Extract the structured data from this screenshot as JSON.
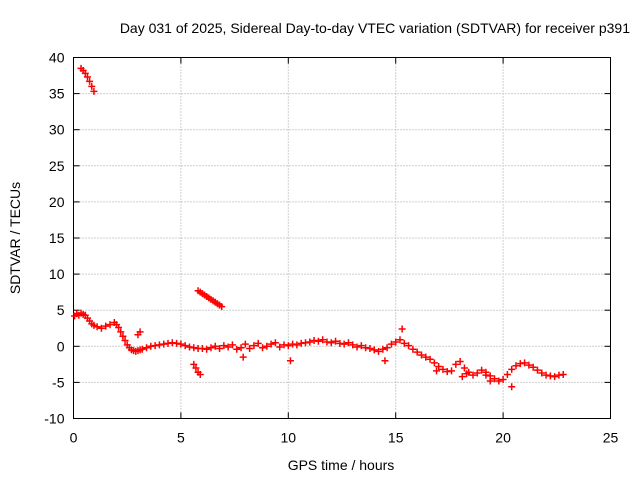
{
  "chart_data": {
    "type": "scatter",
    "title": "Day 031 of 2025, Sidereal Day-to-day VTEC variation (SDTVAR) for receiver p391",
    "xlabel": "GPS time / hours",
    "ylabel": "SDTVAR / TECUs",
    "xlim": [
      0,
      25
    ],
    "ylim": [
      -10,
      40
    ],
    "xticks": [
      0,
      5,
      10,
      15,
      20,
      25
    ],
    "yticks": [
      -10,
      -5,
      0,
      5,
      10,
      15,
      20,
      25,
      30,
      35,
      40
    ],
    "grid": true,
    "marker": "plus",
    "color": "#ff0000",
    "series": [
      {
        "name": "SDTVAR",
        "x": [
          0.35,
          0.45,
          0.55,
          0.65,
          0.75,
          0.85,
          0.95,
          0.05,
          0.15,
          0.25,
          0.35,
          0.45,
          0.55,
          0.65,
          0.75,
          0.85,
          0.95,
          1.1,
          1.3,
          1.5,
          1.7,
          1.9,
          2.0,
          2.1,
          2.2,
          2.3,
          2.4,
          2.5,
          2.6,
          2.7,
          2.8,
          2.9,
          3.0,
          3.1,
          3.2,
          3.4,
          3.6,
          3.8,
          4.0,
          4.2,
          4.4,
          4.6,
          4.8,
          5.0,
          5.2,
          5.4,
          5.6,
          5.8,
          5.8,
          5.9,
          6.0,
          6.1,
          6.2,
          6.3,
          6.4,
          6.5,
          6.6,
          6.7,
          6.8,
          6.9,
          6.0,
          6.2,
          6.4,
          6.6,
          6.8,
          7.0,
          7.2,
          7.4,
          7.6,
          7.8,
          8.0,
          8.2,
          8.4,
          8.6,
          8.8,
          9.0,
          9.2,
          9.4,
          9.6,
          9.8,
          10.0,
          10.2,
          10.4,
          10.6,
          10.8,
          11.0,
          11.2,
          11.4,
          11.6,
          11.8,
          12.0,
          12.2,
          12.4,
          12.6,
          12.8,
          13.0,
          13.2,
          13.4,
          13.6,
          13.8,
          14.0,
          14.2,
          14.4,
          14.6,
          14.8,
          15.0,
          15.2,
          15.4,
          15.6,
          15.8,
          16.0,
          16.2,
          16.4,
          16.6,
          16.8,
          17.0,
          17.2,
          17.4,
          17.6,
          17.8,
          18.0,
          18.2,
          18.4,
          18.6,
          18.8,
          19.0,
          19.2,
          19.4,
          19.6,
          19.8,
          20.0,
          20.2,
          20.4,
          20.6,
          20.8,
          21.0,
          21.2,
          21.4,
          21.6,
          21.8,
          22.0,
          22.2,
          22.4,
          22.6,
          22.8,
          5.6,
          5.7,
          5.8,
          5.9,
          3.0,
          3.1,
          7.9,
          10.1,
          14.5,
          15.3,
          16.9,
          18.1,
          18.3,
          19.2,
          19.4,
          20.4
        ],
        "y": [
          38.5,
          38.2,
          37.8,
          37.3,
          36.7,
          36.0,
          35.3,
          4.2,
          4.5,
          4.3,
          4.6,
          4.4,
          4.3,
          3.9,
          3.5,
          3.1,
          2.9,
          2.7,
          2.5,
          2.8,
          3.0,
          3.3,
          3.0,
          2.6,
          2.0,
          1.4,
          0.8,
          0.2,
          -0.2,
          -0.5,
          -0.6,
          -0.7,
          -0.6,
          -0.5,
          -0.4,
          -0.2,
          0.0,
          0.1,
          0.2,
          0.3,
          0.4,
          0.5,
          0.4,
          0.3,
          0.1,
          -0.1,
          -0.2,
          -0.3,
          7.7,
          7.5,
          7.3,
          7.1,
          6.9,
          6.7,
          6.5,
          6.3,
          6.1,
          5.9,
          5.7,
          5.5,
          -0.3,
          -0.4,
          -0.2,
          0.0,
          -0.3,
          0.1,
          -0.1,
          0.2,
          -0.4,
          -0.2,
          0.3,
          -0.3,
          0.1,
          0.4,
          -0.2,
          0.0,
          0.3,
          0.5,
          -0.1,
          0.2,
          0.1,
          0.3,
          0.2,
          0.4,
          0.5,
          0.6,
          0.8,
          0.7,
          0.9,
          0.6,
          0.5,
          0.7,
          0.4,
          0.3,
          0.5,
          0.2,
          -0.1,
          0.1,
          -0.2,
          -0.3,
          -0.5,
          -0.7,
          -0.4,
          -0.2,
          0.3,
          0.6,
          0.9,
          0.4,
          0.1,
          -0.4,
          -0.8,
          -1.2,
          -1.5,
          -1.8,
          -2.3,
          -2.8,
          -3.2,
          -3.5,
          -3.4,
          -2.5,
          -2.1,
          -3.0,
          -3.6,
          -4.0,
          -3.7,
          -3.3,
          -3.6,
          -4.1,
          -4.5,
          -4.8,
          -4.6,
          -3.9,
          -3.2,
          -2.7,
          -2.4,
          -2.3,
          -2.6,
          -2.9,
          -3.3,
          -3.7,
          -4.0,
          -4.1,
          -4.2,
          -4.0,
          -3.9,
          -2.5,
          -3.0,
          -3.6,
          -3.9,
          1.6,
          2.0,
          -1.5,
          -2.0,
          -2.0,
          2.4,
          -3.4,
          -4.2,
          -3.8,
          -4.0,
          -4.8,
          -5.6
        ]
      }
    ]
  }
}
